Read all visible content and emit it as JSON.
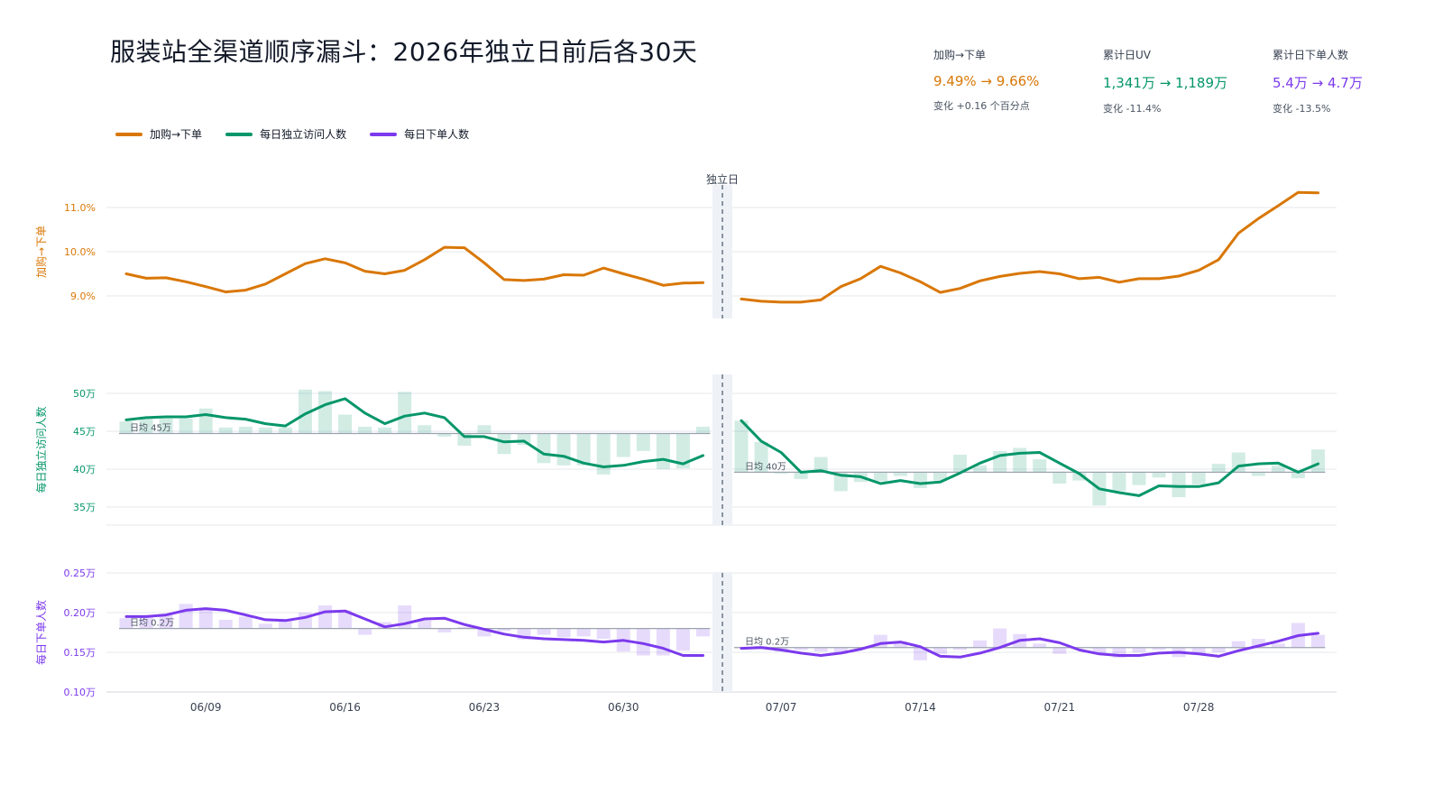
{
  "title": "服装站全渠道顺序漏斗：2026年独立日前后各30天",
  "colors": {
    "conv": "#d97706",
    "uv": "#059669",
    "orders": "#7c3aed"
  },
  "kpis": [
    {
      "label": "加购→下单",
      "value": "9.49% → 9.66%",
      "change": "变化 +0.16 个百分点",
      "color": "#d97706"
    },
    {
      "label": "累计日UV",
      "value": "1,341万 → 1,189万",
      "change": "变化 -11.4%",
      "color": "#059669"
    },
    {
      "label": "累计日下单人数",
      "value": "5.4万 → 4.7万",
      "change": "变化 -13.5%",
      "color": "#7c3aed"
    }
  ],
  "legend": [
    "加购→下单",
    "每日独立访问人数",
    "每日下单人数"
  ],
  "event_label": "独立日",
  "chart_data": {
    "type": "line",
    "event_date": "07/04",
    "x_ticks": [
      "06/09",
      "06/16",
      "06/23",
      "06/30",
      "07/07",
      "07/14",
      "07/21",
      "07/28"
    ],
    "panels": [
      {
        "name": "conversion",
        "ylabel": "加购→下单",
        "unit": "%",
        "ylim": [
          8.5,
          11.5
        ],
        "yticks": [
          9.0,
          10.0,
          11.0
        ],
        "ytick_labels": [
          "9.0%",
          "10.0%",
          "11.0%"
        ],
        "pre": [
          9.5,
          9.4,
          9.41,
          9.32,
          9.21,
          9.09,
          9.13,
          9.27,
          9.5,
          9.73,
          9.84,
          9.75,
          9.56,
          9.5,
          9.58,
          9.82,
          10.1,
          10.09,
          9.75,
          9.37,
          9.35,
          9.38,
          9.48,
          9.47,
          9.63,
          9.5,
          9.38,
          9.24,
          9.29,
          9.3
        ],
        "post": [
          8.93,
          8.88,
          8.86,
          8.86,
          8.91,
          9.21,
          9.39,
          9.67,
          9.52,
          9.32,
          9.08,
          9.17,
          9.34,
          9.44,
          9.51,
          9.55,
          9.5,
          9.39,
          9.42,
          9.31,
          9.39,
          9.39,
          9.45,
          9.58,
          9.82,
          10.42,
          10.75,
          11.04,
          11.34,
          11.33
        ]
      },
      {
        "name": "daily-uv",
        "ylabel": "每日独立访问人数",
        "unit": "万",
        "ylim": [
          32.5,
          52.5
        ],
        "yticks": [
          35,
          40,
          45,
          50
        ],
        "ytick_labels": [
          "35万",
          "40万",
          "45万",
          "50万"
        ],
        "pre_avg": 44.7,
        "post_avg": 39.6,
        "pre_avg_label": "日均 45万",
        "post_avg_label": "日均 40万",
        "pre_bars": [
          46.3,
          46.8,
          46.7,
          46.7,
          48.0,
          45.5,
          45.6,
          45.5,
          45.5,
          50.5,
          50.3,
          47.2,
          45.6,
          45.5,
          50.2,
          45.8,
          44.3,
          43.1,
          45.8,
          42.0,
          43.2,
          40.8,
          40.5,
          40.5,
          39.3,
          41.6,
          42.4,
          40.0,
          40.1,
          45.6
        ],
        "pre_line": [
          46.5,
          46.8,
          46.9,
          46.9,
          47.2,
          46.8,
          46.6,
          46.0,
          45.7,
          47.3,
          48.5,
          49.3,
          47.4,
          46.0,
          47.0,
          47.4,
          46.8,
          44.3,
          44.3,
          43.6,
          43.7,
          42.0,
          41.7,
          40.8,
          40.3,
          40.5,
          41.0,
          41.3,
          40.7,
          41.8
        ],
        "post_bars": [
          46.4,
          43.6,
          39.4,
          38.7,
          41.6,
          37.1,
          38.3,
          38.4,
          39.1,
          37.5,
          38.5,
          41.9,
          40.5,
          42.4,
          42.8,
          41.3,
          38.1,
          38.5,
          35.2,
          37.1,
          37.9,
          38.9,
          36.3,
          38.0,
          40.7,
          42.2,
          39.1,
          40.5,
          38.8,
          42.6
        ],
        "post_line": [
          46.4,
          43.7,
          42.2,
          39.6,
          39.8,
          39.2,
          39.0,
          38.1,
          38.5,
          38.1,
          38.3,
          39.5,
          40.8,
          41.8,
          42.1,
          42.2,
          40.8,
          39.4,
          37.4,
          36.9,
          36.5,
          37.8,
          37.7,
          37.7,
          38.2,
          40.4,
          40.7,
          40.8,
          39.6,
          40.7
        ]
      },
      {
        "name": "daily-orders",
        "ylabel": "每日下单人数",
        "unit": "万",
        "ylim": [
          0.1,
          0.25
        ],
        "yticks": [
          0.1,
          0.15,
          0.2,
          0.25
        ],
        "ytick_labels": [
          "0.10万",
          "0.15万",
          "0.20万",
          "0.25万"
        ],
        "pre_avg": 0.18,
        "post_avg": 0.156,
        "pre_avg_label": "日均 0.2万",
        "post_avg_label": "日均 0.2万",
        "pre_bars": [
          0.193,
          0.195,
          0.197,
          0.211,
          0.206,
          0.191,
          0.195,
          0.186,
          0.19,
          0.2,
          0.209,
          0.203,
          0.172,
          0.188,
          0.209,
          0.19,
          0.175,
          0.182,
          0.17,
          0.177,
          0.166,
          0.172,
          0.169,
          0.17,
          0.167,
          0.151,
          0.146,
          0.146,
          0.152,
          0.17
        ],
        "pre_line": [
          0.195,
          0.195,
          0.197,
          0.203,
          0.205,
          0.203,
          0.197,
          0.191,
          0.19,
          0.194,
          0.201,
          0.202,
          0.192,
          0.182,
          0.186,
          0.192,
          0.193,
          0.185,
          0.179,
          0.173,
          0.169,
          0.167,
          0.166,
          0.165,
          0.163,
          0.165,
          0.161,
          0.155,
          0.146,
          0.146
        ],
        "post_bars": [
          0.157,
          0.158,
          0.151,
          0.153,
          0.151,
          0.148,
          0.155,
          0.172,
          0.164,
          0.14,
          0.148,
          0.153,
          0.165,
          0.18,
          0.173,
          0.161,
          0.148,
          0.156,
          0.149,
          0.143,
          0.15,
          0.153,
          0.144,
          0.148,
          0.15,
          0.164,
          0.167,
          0.161,
          0.187,
          0.172
        ],
        "post_line": [
          0.155,
          0.156,
          0.153,
          0.149,
          0.146,
          0.149,
          0.154,
          0.161,
          0.163,
          0.157,
          0.145,
          0.144,
          0.149,
          0.156,
          0.165,
          0.167,
          0.162,
          0.153,
          0.148,
          0.146,
          0.146,
          0.149,
          0.15,
          0.148,
          0.145,
          0.152,
          0.158,
          0.164,
          0.171,
          0.174
        ]
      }
    ]
  }
}
